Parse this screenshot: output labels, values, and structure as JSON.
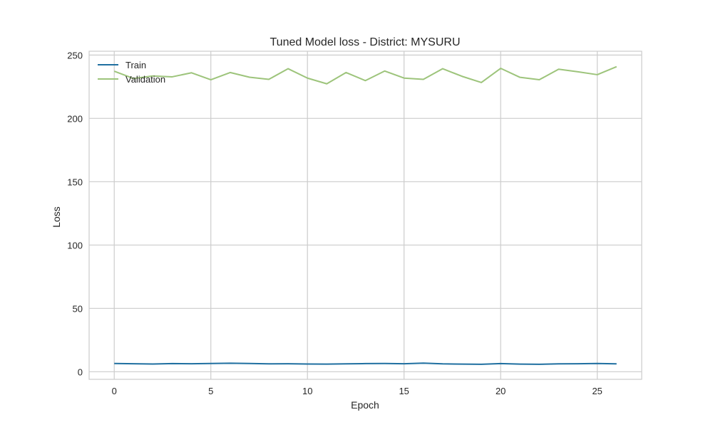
{
  "chart_data": {
    "type": "line",
    "title": "Tuned Model loss - District: MYSURU",
    "xlabel": "Epoch",
    "ylabel": "Loss",
    "xlim": [
      -1.3,
      27.3
    ],
    "ylim": [
      -6,
      253
    ],
    "xticks": [
      0,
      5,
      10,
      15,
      20,
      25
    ],
    "yticks": [
      0,
      50,
      100,
      150,
      200,
      250
    ],
    "grid": true,
    "legend_position": "top-left",
    "x": [
      0,
      1,
      2,
      3,
      4,
      5,
      6,
      7,
      8,
      9,
      10,
      11,
      12,
      13,
      14,
      15,
      16,
      17,
      18,
      19,
      20,
      21,
      22,
      23,
      24,
      25,
      26
    ],
    "series": [
      {
        "name": "Train",
        "color": "#1f6fa0",
        "values": [
          6.5,
          6.3,
          6.1,
          6.4,
          6.3,
          6.5,
          6.7,
          6.5,
          6.2,
          6.3,
          6.1,
          6.0,
          6.2,
          6.4,
          6.5,
          6.3,
          6.8,
          6.2,
          6.0,
          5.9,
          6.4,
          6.0,
          5.9,
          6.2,
          6.3,
          6.5,
          6.2
        ]
      },
      {
        "name": "Validation",
        "color": "#9dc47b",
        "values": [
          237.2,
          231.5,
          233.5,
          232.8,
          236.0,
          230.5,
          236.2,
          232.5,
          230.8,
          239.2,
          231.8,
          227.3,
          236.2,
          229.8,
          237.4,
          231.8,
          230.8,
          239.2,
          233.2,
          228.3,
          239.5,
          232.4,
          230.5,
          238.8,
          236.8,
          234.5,
          240.8
        ]
      }
    ]
  }
}
